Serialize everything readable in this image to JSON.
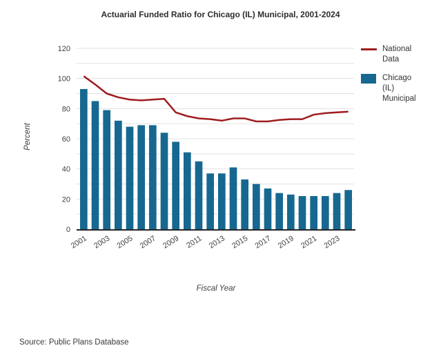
{
  "title": "Actuarial Funded Ratio for Chicago (IL) Municipal, 2001-2024",
  "source_note": "Source: Public Plans Database",
  "colors": {
    "bar": "#166890",
    "line": "#9E1B1E",
    "grid": "#E0E0E0",
    "axis": "#262626",
    "tick_text": "#404040"
  },
  "chart_data": {
    "type": "bar",
    "title": "Actuarial Funded Ratio for Chicago (IL) Municipal, 2001-2024",
    "xlabel": "Fiscal Year",
    "ylabel": "Percent",
    "ylim": [
      0,
      120
    ],
    "y_ticks": [
      0,
      20,
      40,
      60,
      80,
      100,
      120
    ],
    "grid_step": 10,
    "grid": "on",
    "legend_position": "right",
    "categories": [
      "2001",
      "2002",
      "2003",
      "2004",
      "2005",
      "2006",
      "2007",
      "2008",
      "2009",
      "2010",
      "2011",
      "2012",
      "2013",
      "2014",
      "2015",
      "2016",
      "2017",
      "2018",
      "2019",
      "2020",
      "2021",
      "2022",
      "2023",
      "2024"
    ],
    "x_tick_labels": [
      "2001",
      "2003",
      "2005",
      "2007",
      "2009",
      "2011",
      "2013",
      "2015",
      "2017",
      "2019",
      "2021",
      "2023"
    ],
    "series": [
      {
        "name": "National Data",
        "type": "line",
        "color": "#9E1B1E",
        "values": [
          101.5,
          96,
          90,
          87.5,
          86,
          85.5,
          86,
          86.5,
          77.5,
          75,
          73.5,
          73,
          72,
          73.5,
          73.5,
          71.5,
          71.5,
          72.5,
          73,
          73,
          76,
          77,
          77.5,
          78
        ]
      },
      {
        "name": "Chicago (IL) Municipal",
        "type": "bar",
        "color": "#166890",
        "values": [
          93,
          85,
          79,
          72,
          68,
          69,
          69,
          64,
          58,
          51,
          45,
          37,
          37,
          41,
          33,
          30,
          27,
          24,
          23,
          22,
          22,
          22,
          24,
          26
        ]
      }
    ]
  }
}
